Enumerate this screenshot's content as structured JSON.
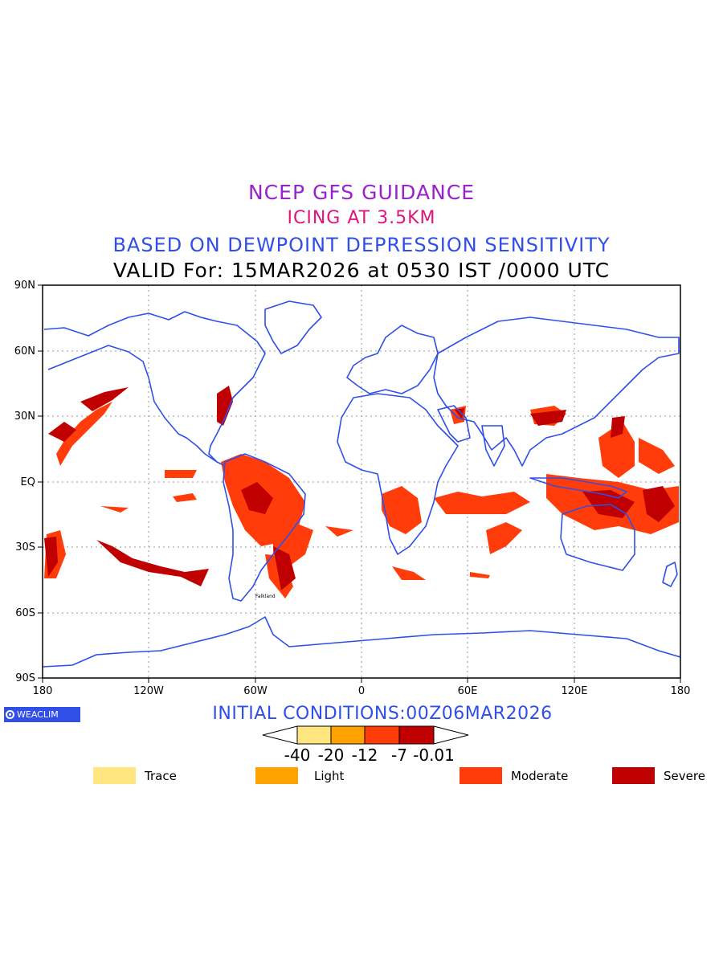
{
  "titles": {
    "line1": "NCEP GFS GUIDANCE",
    "line2": "ICING AT 3.5KM",
    "line3": "BASED ON DEWPOINT DEPRESSION SENSITIVITY",
    "line4": "VALID For: 15MAR2026 at 0530 IST /0000 UTC"
  },
  "axes": {
    "lat_labels": [
      "90N",
      "60N",
      "30N",
      "EQ",
      "30S",
      "60S",
      "90S"
    ],
    "lon_labels": [
      "180",
      "120W",
      "60W",
      "0",
      "60E",
      "120E",
      "180"
    ]
  },
  "logo": {
    "text": "WEACLIM"
  },
  "initial_conditions": "INITIAL CONDITIONS:00Z06MAR2026",
  "colorbar": {
    "ticks": [
      "-40",
      "-20",
      "-12",
      "-7",
      "-0.01"
    ],
    "colors": [
      "#ffe680",
      "#ffa200",
      "#ff3c0a",
      "#c00000"
    ]
  },
  "legend": [
    {
      "label": "Trace",
      "color": "#ffe680"
    },
    {
      "label": "Light",
      "color": "#ffa200"
    },
    {
      "label": "Moderate",
      "color": "#ff3c0a"
    },
    {
      "label": "Severe",
      "color": "#c00000"
    }
  ],
  "colors": {
    "coast": "#2f4fe8",
    "grid": "#9a9a9a",
    "moderate": "#ff3c0a",
    "severe": "#c00000"
  },
  "stations": [
    "Falkland"
  ]
}
